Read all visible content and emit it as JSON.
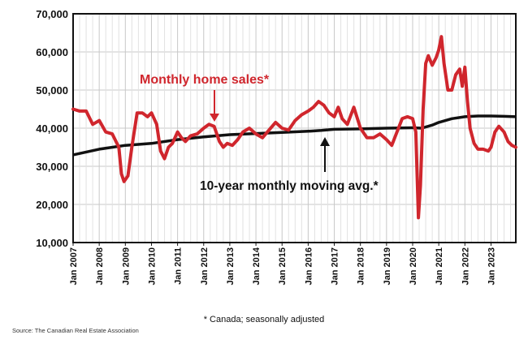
{
  "chart_data": {
    "type": "line",
    "title": "",
    "xlabel": "",
    "ylabel": "",
    "ylim": [
      10000,
      70000
    ],
    "yticks": [
      10000,
      20000,
      30000,
      40000,
      50000,
      60000,
      70000
    ],
    "ytick_labels": [
      "10,000",
      "20,000",
      "30,000",
      "40,000",
      "50,000",
      "60,000",
      "70,000"
    ],
    "x_range": [
      2007.0,
      2023.95
    ],
    "xtick_labels": [
      "Jan 2007",
      "Jan 2008",
      "Jan 2009",
      "Jan 2010",
      "Jan 2011",
      "Jan 2012",
      "Jan 2013",
      "Jan 2014",
      "Jan 2015",
      "Jan 2016",
      "Jan 2017",
      "Jan 2018",
      "Jan 2019",
      "Jan 2020",
      "Jan 2021",
      "Jan 2022",
      "Jan 2023"
    ],
    "grid": true,
    "series": [
      {
        "name": "Monthly home sales*",
        "color": "#d0262d",
        "x": [
          2007.0,
          2007.25,
          2007.5,
          2007.75,
          2008.0,
          2008.25,
          2008.5,
          2008.75,
          2008.85,
          2008.95,
          2009.1,
          2009.25,
          2009.45,
          2009.65,
          2009.85,
          2010.0,
          2010.2,
          2010.35,
          2010.5,
          2010.65,
          2010.8,
          2011.0,
          2011.15,
          2011.3,
          2011.5,
          2011.75,
          2012.0,
          2012.2,
          2012.4,
          2012.6,
          2012.75,
          2012.9,
          2013.1,
          2013.3,
          2013.5,
          2013.75,
          2014.0,
          2014.25,
          2014.5,
          2014.75,
          2015.0,
          2015.25,
          2015.5,
          2015.75,
          2016.0,
          2016.2,
          2016.4,
          2016.6,
          2016.8,
          2017.0,
          2017.15,
          2017.3,
          2017.5,
          2017.75,
          2018.0,
          2018.25,
          2018.5,
          2018.75,
          2019.0,
          2019.2,
          2019.4,
          2019.6,
          2019.8,
          2020.0,
          2020.12,
          2020.22,
          2020.3,
          2020.4,
          2020.5,
          2020.6,
          2020.75,
          2020.9,
          2021.0,
          2021.1,
          2021.2,
          2021.35,
          2021.5,
          2021.65,
          2021.8,
          2021.9,
          2022.0,
          2022.1,
          2022.2,
          2022.35,
          2022.5,
          2022.7,
          2022.9,
          2023.0,
          2023.15,
          2023.3,
          2023.5,
          2023.65,
          2023.8,
          2023.95
        ],
        "values": [
          45000,
          44500,
          44500,
          41000,
          42000,
          39000,
          38500,
          35000,
          28000,
          26000,
          27500,
          35000,
          44000,
          44000,
          43000,
          44000,
          41000,
          34000,
          32000,
          35000,
          36000,
          39000,
          37500,
          36500,
          38000,
          38500,
          40000,
          41000,
          40500,
          36500,
          35000,
          36000,
          35500,
          37000,
          39000,
          40000,
          38500,
          37500,
          39500,
          41500,
          40000,
          39500,
          42000,
          43500,
          44500,
          45500,
          47000,
          46000,
          44000,
          43000,
          45500,
          42500,
          41000,
          45500,
          40000,
          37500,
          37500,
          38500,
          37000,
          35500,
          39000,
          42500,
          43000,
          42500,
          39000,
          16500,
          25000,
          45000,
          57000,
          59000,
          56500,
          58500,
          60500,
          64000,
          57000,
          50000,
          50000,
          54000,
          55500,
          51000,
          56000,
          47000,
          40000,
          36000,
          34500,
          34500,
          34000,
          35000,
          39000,
          40500,
          39000,
          36500,
          35500,
          35000
        ]
      },
      {
        "name": "10-year monthly moving avg.*",
        "color": "#111111",
        "x": [
          2007.0,
          2008.0,
          2009.0,
          2010.0,
          2011.0,
          2012.0,
          2013.0,
          2014.0,
          2015.0,
          2016.0,
          2016.5,
          2017.0,
          2018.0,
          2019.0,
          2020.0,
          2020.35,
          2020.75,
          2021.0,
          2021.5,
          2022.0,
          2022.5,
          2023.0,
          2023.5,
          2023.95
        ],
        "values": [
          33000,
          34500,
          35500,
          36000,
          37000,
          37700,
          38300,
          38600,
          38900,
          39200,
          39400,
          39700,
          39800,
          40000,
          40100,
          40000,
          40800,
          41500,
          42500,
          43000,
          43200,
          43200,
          43100,
          43000
        ]
      }
    ],
    "annotations": [
      {
        "text": "Monthly home sales*",
        "points_to": "monthly home sales line near 2012.5"
      },
      {
        "text": "10-year monthly moving avg.*",
        "points_to": "moving average line near 2016.6"
      }
    ]
  },
  "footnote": "* Canada; seasonally adjusted",
  "source": "Source: The Canadian Real Estate Association"
}
